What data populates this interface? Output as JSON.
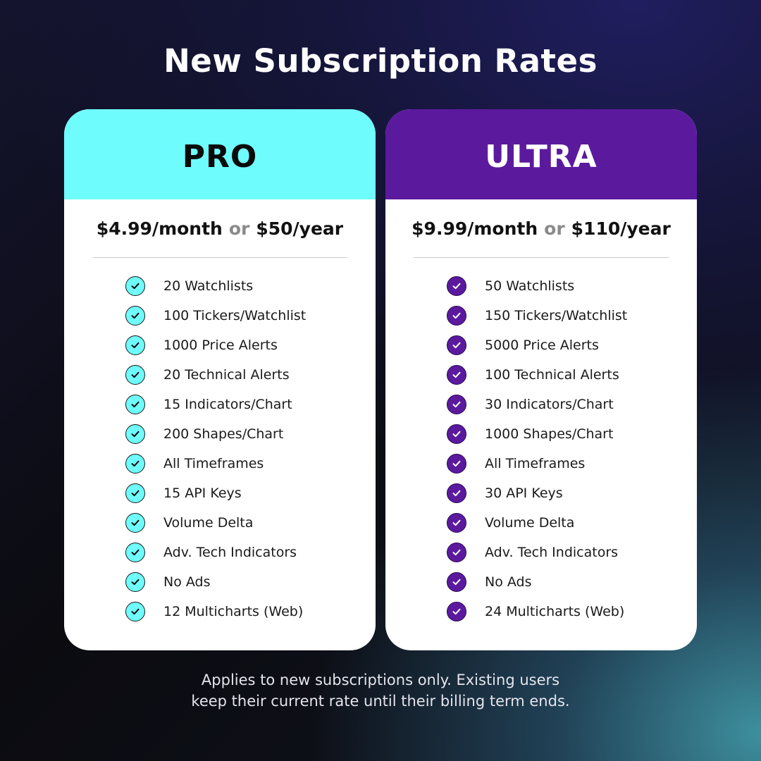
{
  "title": "New Subscription Rates",
  "colors": {
    "pro_accent": "#6ffcfc",
    "ultra_accent": "#5b1a9e",
    "card_background": "#ffffff",
    "muted_or": "#8a8a8a"
  },
  "plans": {
    "pro": {
      "name": "PRO",
      "price_month": "$4.99/month",
      "price_or": "or",
      "price_year": "$50/year",
      "check_icon": "check-circle-icon",
      "features": [
        "20 Watchlists",
        "100 Tickers/Watchlist",
        "1000 Price Alerts",
        "20 Technical Alerts",
        "15 Indicators/Chart",
        "200 Shapes/Chart",
        "All Timeframes",
        "15 API Keys",
        "Volume Delta",
        "Adv. Tech Indicators",
        "No Ads",
        "12 Multicharts (Web)"
      ]
    },
    "ultra": {
      "name": "ULTRA",
      "price_month": "$9.99/month",
      "price_or": "or",
      "price_year": "$110/year",
      "check_icon": "check-circle-icon",
      "features": [
        "50 Watchlists",
        "150 Tickers/Watchlist",
        "5000 Price Alerts",
        "100 Technical Alerts",
        "30 Indicators/Chart",
        "1000 Shapes/Chart",
        "All Timeframes",
        "30 API Keys",
        "Volume Delta",
        "Adv. Tech Indicators",
        "No Ads",
        "24 Multicharts (Web)"
      ]
    }
  },
  "footnote": {
    "line1": "Applies to new subscriptions only. Existing users",
    "line2": "keep their current rate until their billing term ends."
  }
}
